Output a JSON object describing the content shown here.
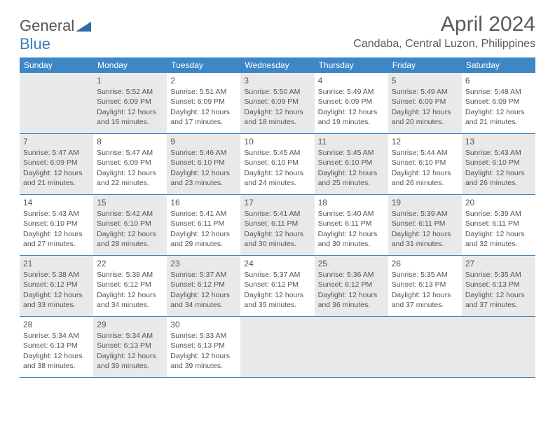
{
  "header": {
    "logo_general": "General",
    "logo_blue": "Blue",
    "month_title": "April 2024",
    "location": "Candaba, Central Luzon, Philippines"
  },
  "colors": {
    "header_bg": "#3d87c7",
    "header_text": "#ffffff",
    "shaded_bg": "#e9e9e9",
    "text": "#555555",
    "border": "#3d87c7"
  },
  "weekdays": [
    "Sunday",
    "Monday",
    "Tuesday",
    "Wednesday",
    "Thursday",
    "Friday",
    "Saturday"
  ],
  "weeks": [
    [
      {
        "blank": true,
        "shaded": false
      },
      {
        "num": "1",
        "shaded": true,
        "sunrise": "Sunrise: 5:52 AM",
        "sunset": "Sunset: 6:09 PM",
        "day1": "Daylight: 12 hours",
        "day2": "and 16 minutes."
      },
      {
        "num": "2",
        "shaded": false,
        "sunrise": "Sunrise: 5:51 AM",
        "sunset": "Sunset: 6:09 PM",
        "day1": "Daylight: 12 hours",
        "day2": "and 17 minutes."
      },
      {
        "num": "3",
        "shaded": true,
        "sunrise": "Sunrise: 5:50 AM",
        "sunset": "Sunset: 6:09 PM",
        "day1": "Daylight: 12 hours",
        "day2": "and 18 minutes."
      },
      {
        "num": "4",
        "shaded": false,
        "sunrise": "Sunrise: 5:49 AM",
        "sunset": "Sunset: 6:09 PM",
        "day1": "Daylight: 12 hours",
        "day2": "and 19 minutes."
      },
      {
        "num": "5",
        "shaded": true,
        "sunrise": "Sunrise: 5:49 AM",
        "sunset": "Sunset: 6:09 PM",
        "day1": "Daylight: 12 hours",
        "day2": "and 20 minutes."
      },
      {
        "num": "6",
        "shaded": false,
        "sunrise": "Sunrise: 5:48 AM",
        "sunset": "Sunset: 6:09 PM",
        "day1": "Daylight: 12 hours",
        "day2": "and 21 minutes."
      }
    ],
    [
      {
        "num": "7",
        "shaded": true,
        "sunrise": "Sunrise: 5:47 AM",
        "sunset": "Sunset: 6:09 PM",
        "day1": "Daylight: 12 hours",
        "day2": "and 21 minutes."
      },
      {
        "num": "8",
        "shaded": false,
        "sunrise": "Sunrise: 5:47 AM",
        "sunset": "Sunset: 6:09 PM",
        "day1": "Daylight: 12 hours",
        "day2": "and 22 minutes."
      },
      {
        "num": "9",
        "shaded": true,
        "sunrise": "Sunrise: 5:46 AM",
        "sunset": "Sunset: 6:10 PM",
        "day1": "Daylight: 12 hours",
        "day2": "and 23 minutes."
      },
      {
        "num": "10",
        "shaded": false,
        "sunrise": "Sunrise: 5:45 AM",
        "sunset": "Sunset: 6:10 PM",
        "day1": "Daylight: 12 hours",
        "day2": "and 24 minutes."
      },
      {
        "num": "11",
        "shaded": true,
        "sunrise": "Sunrise: 5:45 AM",
        "sunset": "Sunset: 6:10 PM",
        "day1": "Daylight: 12 hours",
        "day2": "and 25 minutes."
      },
      {
        "num": "12",
        "shaded": false,
        "sunrise": "Sunrise: 5:44 AM",
        "sunset": "Sunset: 6:10 PM",
        "day1": "Daylight: 12 hours",
        "day2": "and 26 minutes."
      },
      {
        "num": "13",
        "shaded": true,
        "sunrise": "Sunrise: 5:43 AM",
        "sunset": "Sunset: 6:10 PM",
        "day1": "Daylight: 12 hours",
        "day2": "and 26 minutes."
      }
    ],
    [
      {
        "num": "14",
        "shaded": false,
        "sunrise": "Sunrise: 5:43 AM",
        "sunset": "Sunset: 6:10 PM",
        "day1": "Daylight: 12 hours",
        "day2": "and 27 minutes."
      },
      {
        "num": "15",
        "shaded": true,
        "sunrise": "Sunrise: 5:42 AM",
        "sunset": "Sunset: 6:10 PM",
        "day1": "Daylight: 12 hours",
        "day2": "and 28 minutes."
      },
      {
        "num": "16",
        "shaded": false,
        "sunrise": "Sunrise: 5:41 AM",
        "sunset": "Sunset: 6:11 PM",
        "day1": "Daylight: 12 hours",
        "day2": "and 29 minutes."
      },
      {
        "num": "17",
        "shaded": true,
        "sunrise": "Sunrise: 5:41 AM",
        "sunset": "Sunset: 6:11 PM",
        "day1": "Daylight: 12 hours",
        "day2": "and 30 minutes."
      },
      {
        "num": "18",
        "shaded": false,
        "sunrise": "Sunrise: 5:40 AM",
        "sunset": "Sunset: 6:11 PM",
        "day1": "Daylight: 12 hours",
        "day2": "and 30 minutes."
      },
      {
        "num": "19",
        "shaded": true,
        "sunrise": "Sunrise: 5:39 AM",
        "sunset": "Sunset: 6:11 PM",
        "day1": "Daylight: 12 hours",
        "day2": "and 31 minutes."
      },
      {
        "num": "20",
        "shaded": false,
        "sunrise": "Sunrise: 5:39 AM",
        "sunset": "Sunset: 6:11 PM",
        "day1": "Daylight: 12 hours",
        "day2": "and 32 minutes."
      }
    ],
    [
      {
        "num": "21",
        "shaded": true,
        "sunrise": "Sunrise: 5:38 AM",
        "sunset": "Sunset: 6:12 PM",
        "day1": "Daylight: 12 hours",
        "day2": "and 33 minutes."
      },
      {
        "num": "22",
        "shaded": false,
        "sunrise": "Sunrise: 5:38 AM",
        "sunset": "Sunset: 6:12 PM",
        "day1": "Daylight: 12 hours",
        "day2": "and 34 minutes."
      },
      {
        "num": "23",
        "shaded": true,
        "sunrise": "Sunrise: 5:37 AM",
        "sunset": "Sunset: 6:12 PM",
        "day1": "Daylight: 12 hours",
        "day2": "and 34 minutes."
      },
      {
        "num": "24",
        "shaded": false,
        "sunrise": "Sunrise: 5:37 AM",
        "sunset": "Sunset: 6:12 PM",
        "day1": "Daylight: 12 hours",
        "day2": "and 35 minutes."
      },
      {
        "num": "25",
        "shaded": true,
        "sunrise": "Sunrise: 5:36 AM",
        "sunset": "Sunset: 6:12 PM",
        "day1": "Daylight: 12 hours",
        "day2": "and 36 minutes."
      },
      {
        "num": "26",
        "shaded": false,
        "sunrise": "Sunrise: 5:35 AM",
        "sunset": "Sunset: 6:13 PM",
        "day1": "Daylight: 12 hours",
        "day2": "and 37 minutes."
      },
      {
        "num": "27",
        "shaded": true,
        "sunrise": "Sunrise: 5:35 AM",
        "sunset": "Sunset: 6:13 PM",
        "day1": "Daylight: 12 hours",
        "day2": "and 37 minutes."
      }
    ],
    [
      {
        "num": "28",
        "shaded": false,
        "sunrise": "Sunrise: 5:34 AM",
        "sunset": "Sunset: 6:13 PM",
        "day1": "Daylight: 12 hours",
        "day2": "and 38 minutes."
      },
      {
        "num": "29",
        "shaded": true,
        "sunrise": "Sunrise: 5:34 AM",
        "sunset": "Sunset: 6:13 PM",
        "day1": "Daylight: 12 hours",
        "day2": "and 39 minutes."
      },
      {
        "num": "30",
        "shaded": false,
        "sunrise": "Sunrise: 5:33 AM",
        "sunset": "Sunset: 6:13 PM",
        "day1": "Daylight: 12 hours",
        "day2": "and 39 minutes."
      },
      {
        "blank": true,
        "shaded": true
      },
      {
        "blank": true,
        "shaded": false
      },
      {
        "blank": true,
        "shaded": true
      },
      {
        "blank": true,
        "shaded": false
      }
    ]
  ]
}
